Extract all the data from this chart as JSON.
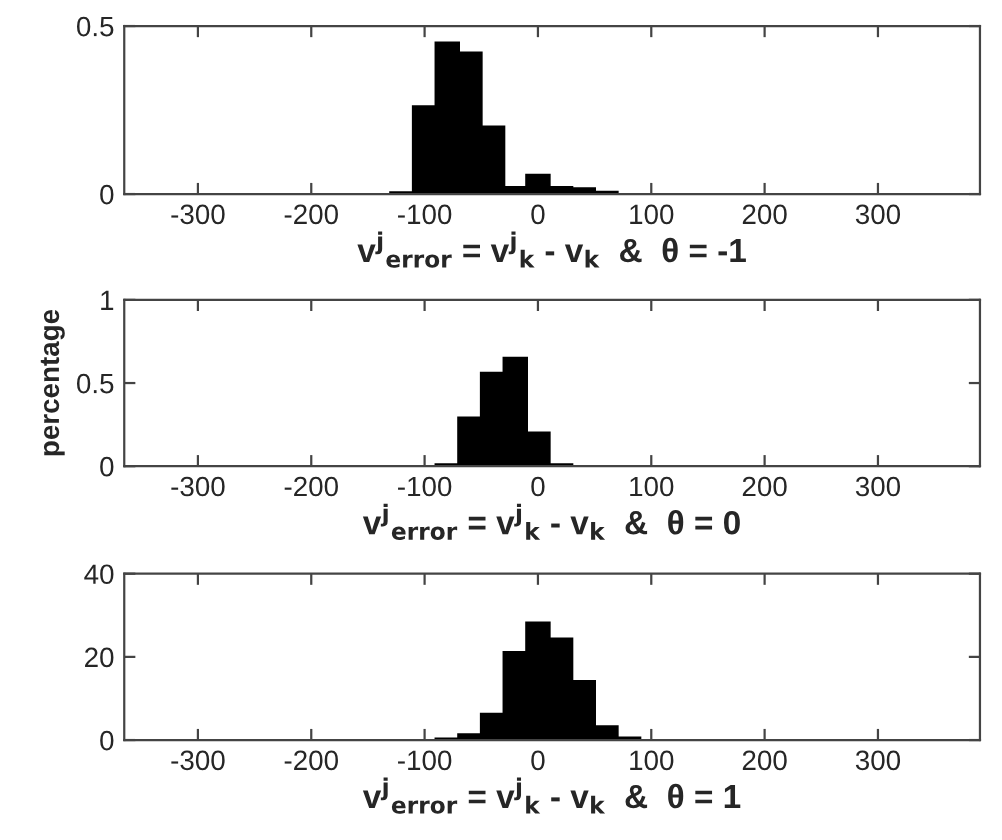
{
  "chart_data": [
    {
      "type": "histogram",
      "bins": [
        -130,
        -110,
        -90,
        -70,
        -50,
        -30,
        -10,
        10,
        30,
        50,
        70
      ],
      "values": [
        0.004,
        0.26,
        0.45,
        0.42,
        0.2,
        0.02,
        0.056,
        0.02,
        0.016,
        0.006
      ],
      "color": "#000000",
      "xlim": [
        -365,
        390
      ],
      "xticks": [
        -300,
        -200,
        -100,
        0,
        100,
        200,
        300
      ],
      "ylim": [
        0,
        0.5
      ],
      "yticks": [
        0,
        0.5
      ],
      "xlabel": "v$^{j}$$_{error}$ = v$^{j}$$_{k}$ - v$_{k}$  &  θ = -1",
      "grid": false
    },
    {
      "type": "histogram",
      "bins": [
        -90,
        -70,
        -50,
        -30,
        -10,
        10,
        30
      ],
      "values": [
        0.01,
        0.29,
        0.56,
        0.65,
        0.2,
        0.01
      ],
      "color": "#000000",
      "xlim": [
        -365,
        390
      ],
      "xticks": [
        -300,
        -200,
        -100,
        0,
        100,
        200,
        300
      ],
      "ylim": [
        0,
        1
      ],
      "yticks": [
        0,
        0.5,
        1
      ],
      "xlabel": "v$^{j}$$_{error}$ = v$^{j}$$_{k}$ - v$_{k}$  &  θ = 0",
      "ylabel": "percentage",
      "grid": false
    },
    {
      "type": "histogram",
      "bins": [
        -90,
        -70,
        -50,
        -30,
        -10,
        10,
        30,
        50,
        70,
        90
      ],
      "values": [
        0.3,
        1.3,
        6.2,
        21.1,
        28.2,
        24.3,
        14.1,
        3.2,
        0.5
      ],
      "color": "#000000",
      "xlim": [
        -365,
        390
      ],
      "xticks": [
        -300,
        -200,
        -100,
        0,
        100,
        200,
        300
      ],
      "ylim": [
        0,
        40
      ],
      "yticks": [
        0,
        20,
        40
      ],
      "xlabel": "v$^{j}$$_{error}$ = v$^{j}$$_{k}$ - v$_{k}$  &  θ = 1",
      "grid": false
    }
  ]
}
